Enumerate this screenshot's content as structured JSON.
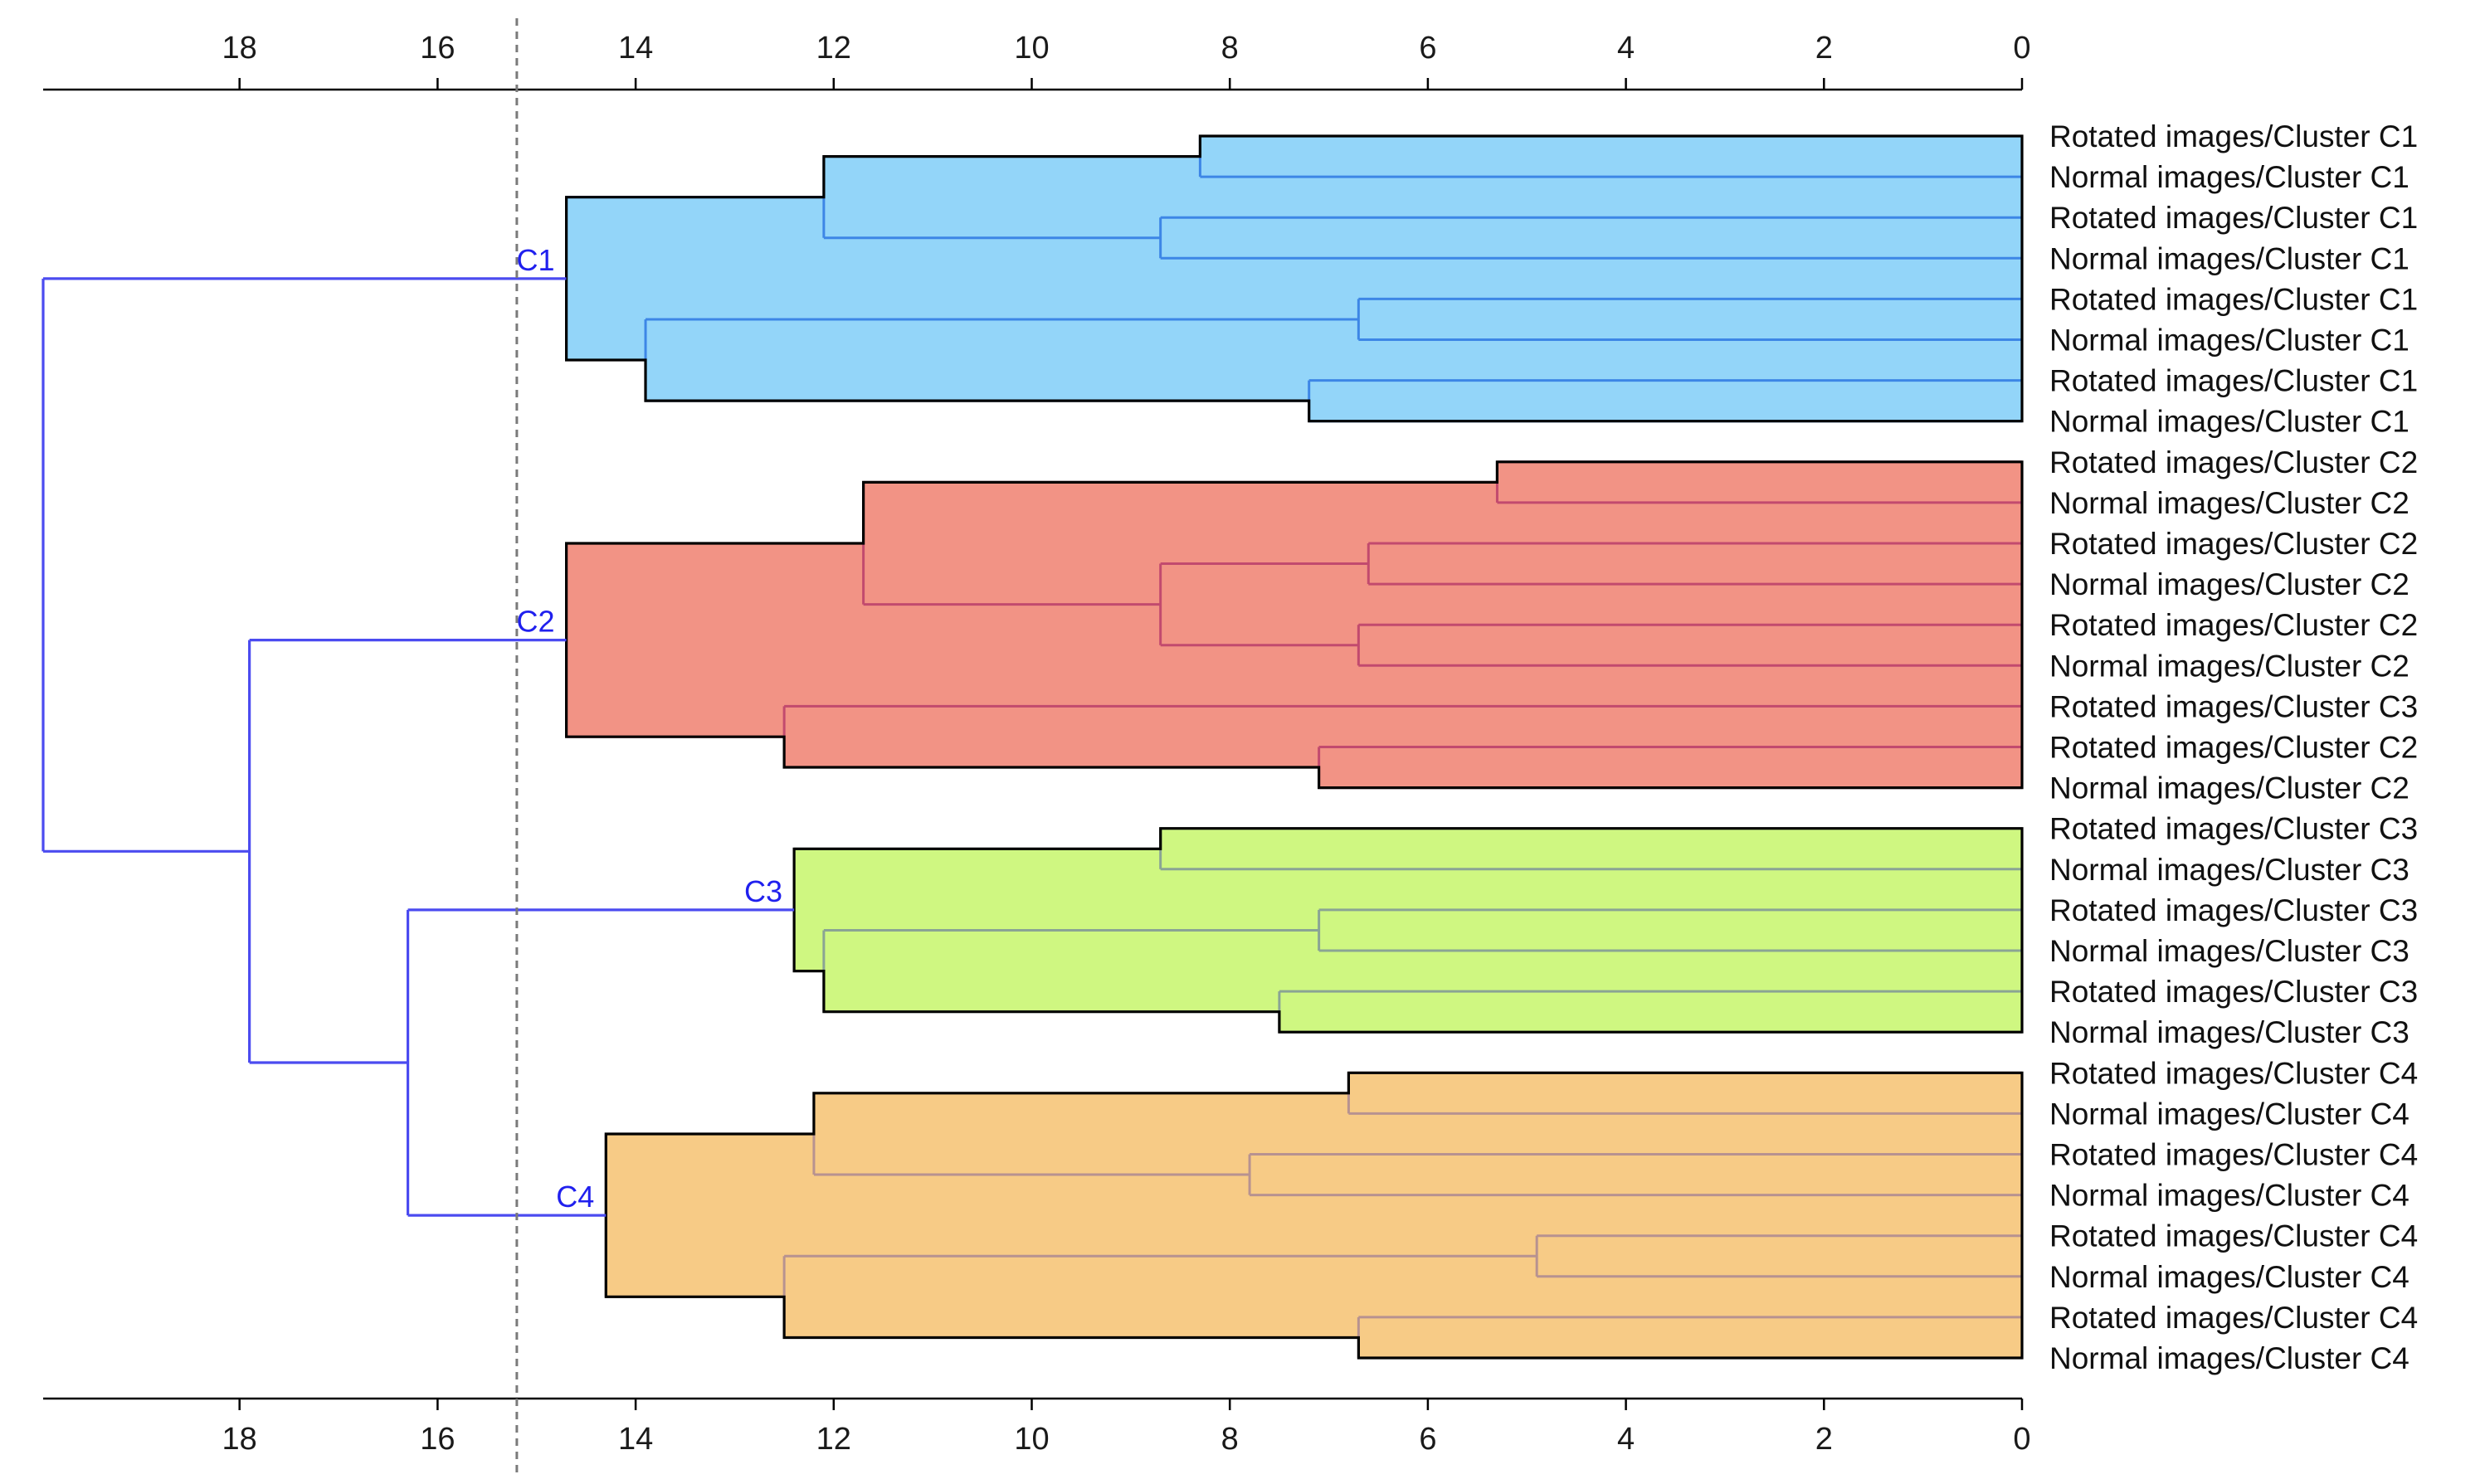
{
  "chart_data": {
    "type": "dendrogram",
    "orientation": "right-to-left",
    "x_axis": {
      "range": [
        20,
        0
      ],
      "ticks": [
        18,
        16,
        14,
        12,
        10,
        8,
        6,
        4,
        2,
        0
      ],
      "tick_labels": [
        "18",
        "16",
        "14",
        "12",
        "10",
        "8",
        "6",
        "4",
        "2",
        "0"
      ],
      "position": "top-and-bottom"
    },
    "cut_line": {
      "value": 15.2,
      "style": "dashed"
    },
    "leaves": [
      "Rotated images/Cluster C1",
      "Normal images/Cluster C1",
      "Rotated images/Cluster C1",
      "Normal images/Cluster C1",
      "Rotated images/Cluster C1",
      "Normal images/Cluster C1",
      "Rotated images/Cluster C1",
      "Normal images/Cluster C1",
      "Rotated images/Cluster C2",
      "Normal images/Cluster C2",
      "Rotated images/Cluster C2",
      "Normal images/Cluster C2",
      "Rotated images/Cluster C2",
      "Normal images/Cluster C2",
      "Rotated images/Cluster C3",
      "Rotated images/Cluster C2",
      "Normal images/Cluster C2",
      "Rotated images/Cluster C3",
      "Normal images/Cluster C3",
      "Rotated images/Cluster C3",
      "Normal images/Cluster C3",
      "Rotated images/Cluster C3",
      "Normal images/Cluster C3",
      "Rotated images/Cluster C4",
      "Normal images/Cluster C4",
      "Rotated images/Cluster C4",
      "Normal images/Cluster C4",
      "Rotated images/Cluster C4",
      "Normal images/Cluster C4",
      "Rotated images/Cluster C4",
      "Normal images/Cluster C4"
    ],
    "merges": [
      {
        "a": 0,
        "b": 1,
        "height": 8.3
      },
      {
        "a": 2,
        "b": 3,
        "height": 8.7
      },
      {
        "a": "m0",
        "b": "m1",
        "height": 12.1
      },
      {
        "a": 4,
        "b": 5,
        "height": 6.7
      },
      {
        "a": 6,
        "b": 7,
        "height": 7.2
      },
      {
        "a": "m3",
        "b": "m4",
        "height": 13.9
      },
      {
        "a": "m2",
        "b": "m5",
        "height": 14.7
      },
      {
        "a": 8,
        "b": 9,
        "height": 5.3
      },
      {
        "a": 10,
        "b": 11,
        "height": 6.6
      },
      {
        "a": 12,
        "b": 13,
        "height": 6.7
      },
      {
        "a": "m8",
        "b": "m9",
        "height": 8.7
      },
      {
        "a": "m7",
        "b": "m10",
        "height": 11.7
      },
      {
        "a": 15,
        "b": 16,
        "height": 7.1
      },
      {
        "a": 14,
        "b": "m12",
        "height": 12.5
      },
      {
        "a": "m11",
        "b": "m13",
        "height": 14.7
      },
      {
        "a": 17,
        "b": 18,
        "height": 8.7
      },
      {
        "a": 19,
        "b": 20,
        "height": 7.1
      },
      {
        "a": 21,
        "b": 22,
        "height": 7.5
      },
      {
        "a": "m16",
        "b": "m17",
        "height": 12.1
      },
      {
        "a": "m15",
        "b": "m18",
        "height": 12.4
      },
      {
        "a": 23,
        "b": 24,
        "height": 6.8
      },
      {
        "a": 25,
        "b": 26,
        "height": 7.8
      },
      {
        "a": "m20",
        "b": "m21",
        "height": 12.2
      },
      {
        "a": 27,
        "b": 28,
        "height": 4.9
      },
      {
        "a": 29,
        "b": 30,
        "height": 6.7
      },
      {
        "a": "m23",
        "b": "m24",
        "height": 12.5
      },
      {
        "a": "m22",
        "b": "m25",
        "height": 14.3
      },
      {
        "a": "m19",
        "b": "m26",
        "height": 16.3
      },
      {
        "a": "m14",
        "b": "m27",
        "height": 17.9
      },
      {
        "a": "m6",
        "b": "m28",
        "height": 20.0
      }
    ],
    "clusters": [
      {
        "name": "C1",
        "root": "m6",
        "color": "#93d5f9",
        "branch_color": "#3d86e6"
      },
      {
        "name": "C2",
        "root": "m14",
        "color": "#f29385",
        "branch_color": "#c24a6e"
      },
      {
        "name": "C3",
        "root": "m19",
        "color": "#cff781",
        "branch_color": "#8aa494"
      },
      {
        "name": "C4",
        "root": "m26",
        "color": "#f7cb86",
        "branch_color": "#b79290"
      }
    ],
    "upper_tree_color": "#4b4bf0",
    "cluster_label_color": "#2020ee"
  }
}
